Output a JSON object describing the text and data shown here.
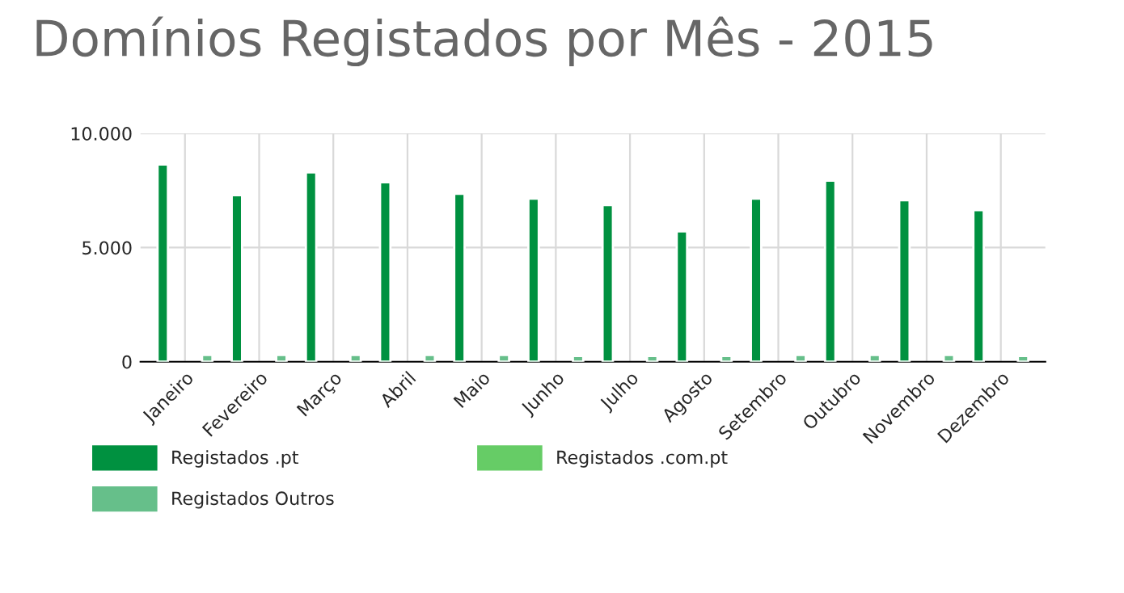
{
  "chart_data": {
    "type": "bar",
    "title": "Domínios Registados por Mês - 2015",
    "categories": [
      "Janeiro",
      "Fevereiro",
      "Março",
      "Abril",
      "Maio",
      "Junho",
      "Julho",
      "Agosto",
      "Setembro",
      "Outubro",
      "Novembro",
      "Dezembro"
    ],
    "series": [
      {
        "name": "Registados .pt",
        "color": "#009140",
        "values": [
          8640,
          7290,
          8290,
          7860,
          7360,
          7140,
          6860,
          5710,
          7140,
          7930,
          7070,
          6640
        ]
      },
      {
        "name": "Registados .com.pt",
        "color": "#66cc66",
        "values": [
          null,
          null,
          null,
          null,
          null,
          null,
          null,
          null,
          null,
          null,
          null,
          null
        ]
      },
      {
        "name": "Registados Outros",
        "color": "#66bf8a",
        "values": [
          300,
          300,
          300,
          300,
          300,
          250,
          250,
          250,
          300,
          300,
          300,
          250
        ]
      }
    ],
    "ylim": [
      0,
      10000
    ],
    "yticks": [
      {
        "value": 0,
        "label": "0"
      },
      {
        "value": 5000,
        "label": "5.000"
      },
      {
        "value": 10000,
        "label": "10.000"
      }
    ],
    "grid": true,
    "legend": "bottom"
  }
}
